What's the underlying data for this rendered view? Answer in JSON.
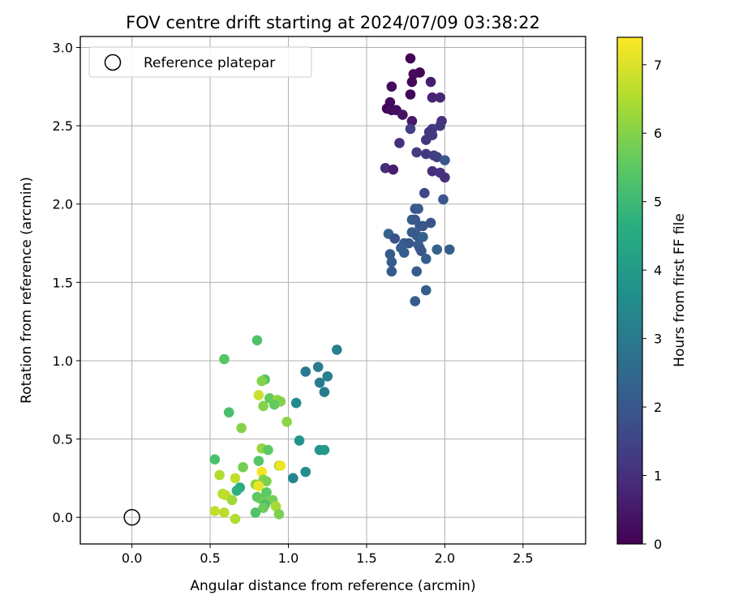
{
  "chart_data": {
    "type": "scatter",
    "title": "FOV centre drift starting at 2024/07/09 03:38:22",
    "xlabel": "Angular distance from reference (arcmin)",
    "ylabel": "Rotation from reference (arcmin)",
    "xlim": [
      -0.33,
      2.9
    ],
    "ylim": [
      -0.17,
      3.07
    ],
    "xticks": [
      "0.0",
      "0.5",
      "1.0",
      "1.5",
      "2.0",
      "2.5"
    ],
    "xtick_values": [
      0,
      0.5,
      1.0,
      1.5,
      2.0,
      2.5
    ],
    "yticks": [
      "0.0",
      "0.5",
      "1.0",
      "1.5",
      "2.0",
      "2.5",
      "3.0"
    ],
    "ytick_values": [
      0,
      0.5,
      1.0,
      1.5,
      2.0,
      2.5,
      3.0
    ],
    "grid": true,
    "legend": {
      "placement": "top-left",
      "entries": [
        "Reference platepar"
      ]
    },
    "reference_point": {
      "x": 0.0,
      "y": 0.0
    },
    "colorbar": {
      "label": "Hours from first FF file",
      "colormap": "viridis",
      "range": [
        0,
        7.4
      ],
      "ticks": [
        "0",
        "1",
        "2",
        "3",
        "4",
        "5",
        "6",
        "7"
      ],
      "tick_values": [
        0,
        1,
        2,
        3,
        4,
        5,
        6,
        7
      ]
    },
    "series": [
      {
        "points": [
          {
            "x": 1.78,
            "y": 2.93,
            "c": 0.05
          },
          {
            "x": 1.84,
            "y": 2.84,
            "c": 0.1
          },
          {
            "x": 1.8,
            "y": 2.83,
            "c": 0.2
          },
          {
            "x": 1.79,
            "y": 2.78,
            "c": 0.15
          },
          {
            "x": 1.66,
            "y": 2.75,
            "c": 0.2
          },
          {
            "x": 1.91,
            "y": 2.78,
            "c": 0.6
          },
          {
            "x": 1.78,
            "y": 2.7,
            "c": 0.1
          },
          {
            "x": 1.92,
            "y": 2.68,
            "c": 0.7
          },
          {
            "x": 1.97,
            "y": 2.68,
            "c": 0.8
          },
          {
            "x": 1.65,
            "y": 2.65,
            "c": 0.2
          },
          {
            "x": 1.63,
            "y": 2.61,
            "c": 0.1
          },
          {
            "x": 1.66,
            "y": 2.6,
            "c": 0.2
          },
          {
            "x": 1.69,
            "y": 2.6,
            "c": 0.3
          },
          {
            "x": 1.73,
            "y": 2.57,
            "c": 0.4
          },
          {
            "x": 1.79,
            "y": 2.53,
            "c": 0.5
          },
          {
            "x": 1.98,
            "y": 2.53,
            "c": 1.0
          },
          {
            "x": 1.97,
            "y": 2.5,
            "c": 1.2
          },
          {
            "x": 1.92,
            "y": 2.48,
            "c": 1.3
          },
          {
            "x": 1.78,
            "y": 2.48,
            "c": 1.4
          },
          {
            "x": 1.9,
            "y": 2.46,
            "c": 1.2
          },
          {
            "x": 1.92,
            "y": 2.44,
            "c": 1.2
          },
          {
            "x": 1.88,
            "y": 2.41,
            "c": 1.2
          },
          {
            "x": 1.71,
            "y": 2.39,
            "c": 1.0
          },
          {
            "x": 1.82,
            "y": 2.33,
            "c": 1.3
          },
          {
            "x": 1.88,
            "y": 2.32,
            "c": 1.2
          },
          {
            "x": 1.95,
            "y": 2.3,
            "c": 1.3
          },
          {
            "x": 1.93,
            "y": 2.31,
            "c": 1.4
          },
          {
            "x": 2.0,
            "y": 2.28,
            "c": 2.0
          },
          {
            "x": 1.62,
            "y": 2.23,
            "c": 0.9
          },
          {
            "x": 1.67,
            "y": 2.22,
            "c": 0.6
          },
          {
            "x": 1.92,
            "y": 2.21,
            "c": 1.0
          },
          {
            "x": 1.97,
            "y": 2.2,
            "c": 1.1
          },
          {
            "x": 2.0,
            "y": 2.17,
            "c": 1.0
          },
          {
            "x": 1.87,
            "y": 2.07,
            "c": 1.6
          },
          {
            "x": 1.99,
            "y": 2.03,
            "c": 2.0
          },
          {
            "x": 1.81,
            "y": 1.97,
            "c": 2.0
          },
          {
            "x": 1.83,
            "y": 1.97,
            "c": 2.1
          },
          {
            "x": 1.79,
            "y": 1.9,
            "c": 2.2
          },
          {
            "x": 1.81,
            "y": 1.9,
            "c": 2.0
          },
          {
            "x": 1.84,
            "y": 1.86,
            "c": 2.1
          },
          {
            "x": 1.86,
            "y": 1.86,
            "c": 2.0
          },
          {
            "x": 1.91,
            "y": 1.88,
            "c": 1.9
          },
          {
            "x": 1.79,
            "y": 1.82,
            "c": 2.1
          },
          {
            "x": 1.64,
            "y": 1.81,
            "c": 2.3
          },
          {
            "x": 1.82,
            "y": 1.8,
            "c": 2.0
          },
          {
            "x": 1.68,
            "y": 1.78,
            "c": 1.8
          },
          {
            "x": 1.86,
            "y": 1.79,
            "c": 2.3
          },
          {
            "x": 1.74,
            "y": 1.75,
            "c": 2.1
          },
          {
            "x": 1.77,
            "y": 1.75,
            "c": 2.0
          },
          {
            "x": 1.83,
            "y": 1.74,
            "c": 2.1
          },
          {
            "x": 1.72,
            "y": 1.72,
            "c": 2.2
          },
          {
            "x": 1.84,
            "y": 1.72,
            "c": 2.1
          },
          {
            "x": 1.85,
            "y": 1.7,
            "c": 2.0
          },
          {
            "x": 1.74,
            "y": 1.69,
            "c": 2.2
          },
          {
            "x": 1.65,
            "y": 1.68,
            "c": 2.1
          },
          {
            "x": 1.88,
            "y": 1.65,
            "c": 2.2
          },
          {
            "x": 1.95,
            "y": 1.71,
            "c": 2.3
          },
          {
            "x": 2.03,
            "y": 1.71,
            "c": 2.2
          },
          {
            "x": 1.66,
            "y": 1.63,
            "c": 2.2
          },
          {
            "x": 1.66,
            "y": 1.57,
            "c": 2.1
          },
          {
            "x": 1.82,
            "y": 1.57,
            "c": 2.1
          },
          {
            "x": 1.88,
            "y": 1.45,
            "c": 2.2
          },
          {
            "x": 1.81,
            "y": 1.38,
            "c": 2.1
          },
          {
            "x": 1.31,
            "y": 1.07,
            "c": 3.2
          },
          {
            "x": 1.19,
            "y": 0.96,
            "c": 3.1
          },
          {
            "x": 1.11,
            "y": 0.93,
            "c": 3.0
          },
          {
            "x": 1.25,
            "y": 0.9,
            "c": 3.2
          },
          {
            "x": 1.2,
            "y": 0.86,
            "c": 3.0
          },
          {
            "x": 1.23,
            "y": 0.8,
            "c": 3.1
          },
          {
            "x": 1.05,
            "y": 0.73,
            "c": 3.5
          },
          {
            "x": 1.07,
            "y": 0.49,
            "c": 3.8
          },
          {
            "x": 1.2,
            "y": 0.43,
            "c": 3.9
          },
          {
            "x": 1.23,
            "y": 0.43,
            "c": 4.0
          },
          {
            "x": 1.11,
            "y": 0.29,
            "c": 3.6
          },
          {
            "x": 1.03,
            "y": 0.25,
            "c": 3.3
          },
          {
            "x": 0.8,
            "y": 1.13,
            "c": 5.3
          },
          {
            "x": 0.59,
            "y": 1.01,
            "c": 5.4
          },
          {
            "x": 0.85,
            "y": 0.88,
            "c": 5.4
          },
          {
            "x": 0.83,
            "y": 0.87,
            "c": 6.0
          },
          {
            "x": 0.81,
            "y": 0.78,
            "c": 6.8
          },
          {
            "x": 0.88,
            "y": 0.76,
            "c": 5.6
          },
          {
            "x": 0.93,
            "y": 0.75,
            "c": 6.2
          },
          {
            "x": 0.95,
            "y": 0.74,
            "c": 6.0
          },
          {
            "x": 0.91,
            "y": 0.72,
            "c": 5.6
          },
          {
            "x": 0.84,
            "y": 0.71,
            "c": 6.0
          },
          {
            "x": 0.62,
            "y": 0.67,
            "c": 5.2
          },
          {
            "x": 0.99,
            "y": 0.61,
            "c": 6.1
          },
          {
            "x": 0.7,
            "y": 0.57,
            "c": 6.0
          },
          {
            "x": 0.83,
            "y": 0.44,
            "c": 6.2
          },
          {
            "x": 0.87,
            "y": 0.43,
            "c": 5.5
          },
          {
            "x": 0.53,
            "y": 0.37,
            "c": 5.2
          },
          {
            "x": 0.81,
            "y": 0.36,
            "c": 5.4
          },
          {
            "x": 0.94,
            "y": 0.33,
            "c": 6.4
          },
          {
            "x": 0.95,
            "y": 0.33,
            "c": 7.2
          },
          {
            "x": 0.71,
            "y": 0.32,
            "c": 5.8
          },
          {
            "x": 0.83,
            "y": 0.29,
            "c": 7.3
          },
          {
            "x": 0.56,
            "y": 0.27,
            "c": 6.5
          },
          {
            "x": 0.66,
            "y": 0.25,
            "c": 6.7
          },
          {
            "x": 0.84,
            "y": 0.24,
            "c": 6.0
          },
          {
            "x": 0.86,
            "y": 0.23,
            "c": 5.9
          },
          {
            "x": 0.79,
            "y": 0.21,
            "c": 6.2
          },
          {
            "x": 0.81,
            "y": 0.2,
            "c": 7.2
          },
          {
            "x": 0.69,
            "y": 0.19,
            "c": 4.5
          },
          {
            "x": 0.67,
            "y": 0.17,
            "c": 4.7
          },
          {
            "x": 0.86,
            "y": 0.16,
            "c": 5.5
          },
          {
            "x": 0.58,
            "y": 0.15,
            "c": 6.6
          },
          {
            "x": 0.6,
            "y": 0.14,
            "c": 6.7
          },
          {
            "x": 0.8,
            "y": 0.13,
            "c": 5.5
          },
          {
            "x": 0.82,
            "y": 0.12,
            "c": 5.6
          },
          {
            "x": 0.64,
            "y": 0.11,
            "c": 6.3
          },
          {
            "x": 0.85,
            "y": 0.1,
            "c": 5.8
          },
          {
            "x": 0.9,
            "y": 0.11,
            "c": 5.8
          },
          {
            "x": 0.85,
            "y": 0.08,
            "c": 5.2
          },
          {
            "x": 0.92,
            "y": 0.07,
            "c": 6.4
          },
          {
            "x": 0.84,
            "y": 0.06,
            "c": 5.7
          },
          {
            "x": 0.53,
            "y": 0.04,
            "c": 6.7
          },
          {
            "x": 0.59,
            "y": 0.03,
            "c": 6.6
          },
          {
            "x": 0.79,
            "y": 0.03,
            "c": 5.3
          },
          {
            "x": 0.94,
            "y": 0.02,
            "c": 5.9
          },
          {
            "x": 0.66,
            "y": -0.01,
            "c": 6.5
          }
        ]
      }
    ]
  }
}
